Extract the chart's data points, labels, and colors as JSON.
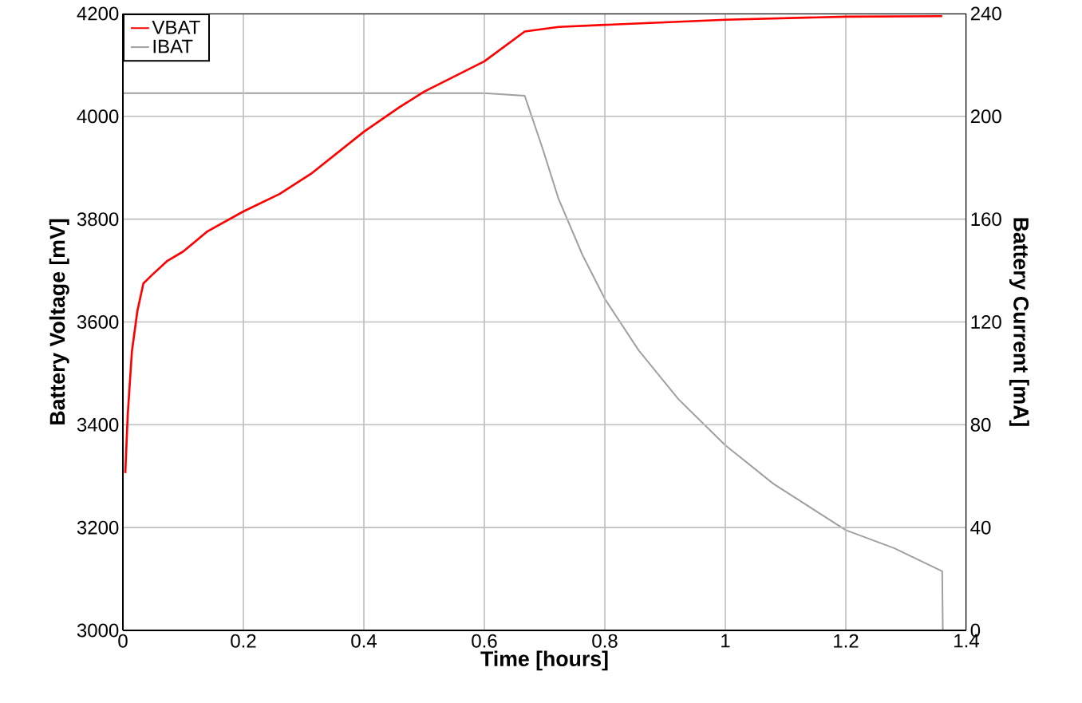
{
  "chart_data": {
    "type": "line",
    "xlabel": "Time [hours]",
    "ylabel": "Battery Voltage [mV]",
    "y2label": "Battery Current [mA]",
    "xlim": [
      0,
      1.4
    ],
    "ylim": [
      3000,
      4200
    ],
    "y2lim": [
      0,
      240
    ],
    "xticks": [
      0,
      0.2,
      0.4,
      0.6,
      0.8,
      1,
      1.2,
      1.4
    ],
    "yticks": [
      3000,
      3200,
      3400,
      3600,
      3800,
      4000,
      4200
    ],
    "y2ticks": [
      0,
      40,
      80,
      120,
      160,
      200,
      240
    ],
    "grid": true,
    "legend": "top left",
    "marker": "none",
    "line_style": "solid",
    "series": [
      {
        "name": "VBAT",
        "color": "#ff0000",
        "x": [
          0.004,
          0.008,
          0.015,
          0.024,
          0.034,
          0.048,
          0.074,
          0.1,
          0.14,
          0.2,
          0.26,
          0.312,
          0.4,
          0.458,
          0.5,
          0.6,
          0.667,
          0.723,
          0.8,
          1.0,
          1.2,
          1.36
        ],
        "values": [
          3306,
          3419,
          3543,
          3621,
          3675,
          3691,
          3719,
          3737,
          3776,
          3815,
          3849,
          3888,
          3970,
          4017,
          4048,
          4107,
          4165,
          4174,
          4178,
          4188,
          4194,
          4195
        ]
      },
      {
        "name": "IBAT",
        "color": "#a0a0a0",
        "axis": "y2",
        "x": [
          0,
          0.2,
          0.4,
          0.6,
          0.667,
          0.696,
          0.723,
          0.763,
          0.8,
          0.856,
          0.922,
          1.0,
          1.08,
          1.2,
          1.28,
          1.36,
          1.361
        ],
        "values": [
          209,
          209,
          209,
          209,
          208,
          188,
          168,
          146,
          129,
          109,
          90,
          72,
          57,
          39,
          32,
          23,
          0
        ]
      }
    ]
  }
}
